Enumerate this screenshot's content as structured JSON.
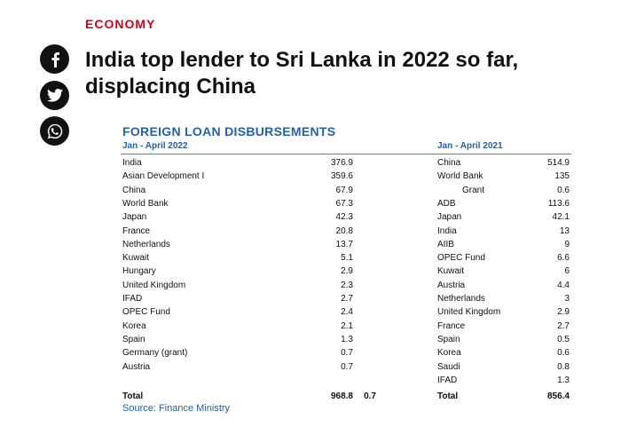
{
  "kicker": "ECONOMY",
  "headline": "India top lender to Sri Lanka in 2022 so far, displacing China",
  "share": [
    "facebook-icon",
    "twitter-icon",
    "whatsapp-icon"
  ],
  "table": {
    "title": "FOREIGN LOAN DISBURSEMENTS",
    "left": {
      "period": "Jan - April 2022",
      "rows": [
        {
          "label": "India",
          "value": "376.9"
        },
        {
          "label": "Asian Development I",
          "value": "359.6"
        },
        {
          "label": "China",
          "value": "67.9"
        },
        {
          "label": "World Bank",
          "value": "67.3"
        },
        {
          "label": "Japan",
          "value": "42.3"
        },
        {
          "label": "France",
          "value": "20.8"
        },
        {
          "label": "Netherlands",
          "value": "13.7"
        },
        {
          "label": "Kuwait",
          "value": "5.1"
        },
        {
          "label": "Hungary",
          "value": "2.9"
        },
        {
          "label": "United Kingdom",
          "value": "2.3"
        },
        {
          "label": "IFAD",
          "value": "2.7"
        },
        {
          "label": "OPEC Fund",
          "value": "2.4"
        },
        {
          "label": "Korea",
          "value": "2.1"
        },
        {
          "label": "Spain",
          "value": "1.3"
        },
        {
          "label": "Germany (grant)",
          "value": "0.7"
        },
        {
          "label": "Austria",
          "value": "0.7"
        }
      ],
      "total_label": "Total",
      "total_value": "968.8",
      "total_extra": "0.7"
    },
    "right": {
      "period": "Jan - April 2021",
      "rows": [
        {
          "label": "China",
          "value": "514.9"
        },
        {
          "label": "World Bank",
          "value": "135"
        },
        {
          "label": "Grant",
          "value": "0.6"
        },
        {
          "label": "ADB",
          "value": "113.6"
        },
        {
          "label": "Japan",
          "value": "42.1"
        },
        {
          "label": "India",
          "value": "13"
        },
        {
          "label": "AIIB",
          "value": "9"
        },
        {
          "label": "OPEC Fund",
          "value": "6.6"
        },
        {
          "label": "Kuwait",
          "value": "6"
        },
        {
          "label": "Austria",
          "value": "4.4"
        },
        {
          "label": "Netherlands",
          "value": "3"
        },
        {
          "label": "United Kingdom",
          "value": "2.9"
        },
        {
          "label": "France",
          "value": "2.7"
        },
        {
          "label": "Spain",
          "value": "0.5"
        },
        {
          "label": "Korea",
          "value": "0.6"
        },
        {
          "label": "Saudi",
          "value": "0.8"
        },
        {
          "label": "IFAD",
          "value": "1.3"
        }
      ],
      "total_label": "Total",
      "total_value": "856.4"
    },
    "source": "Source: Finance Ministry"
  }
}
